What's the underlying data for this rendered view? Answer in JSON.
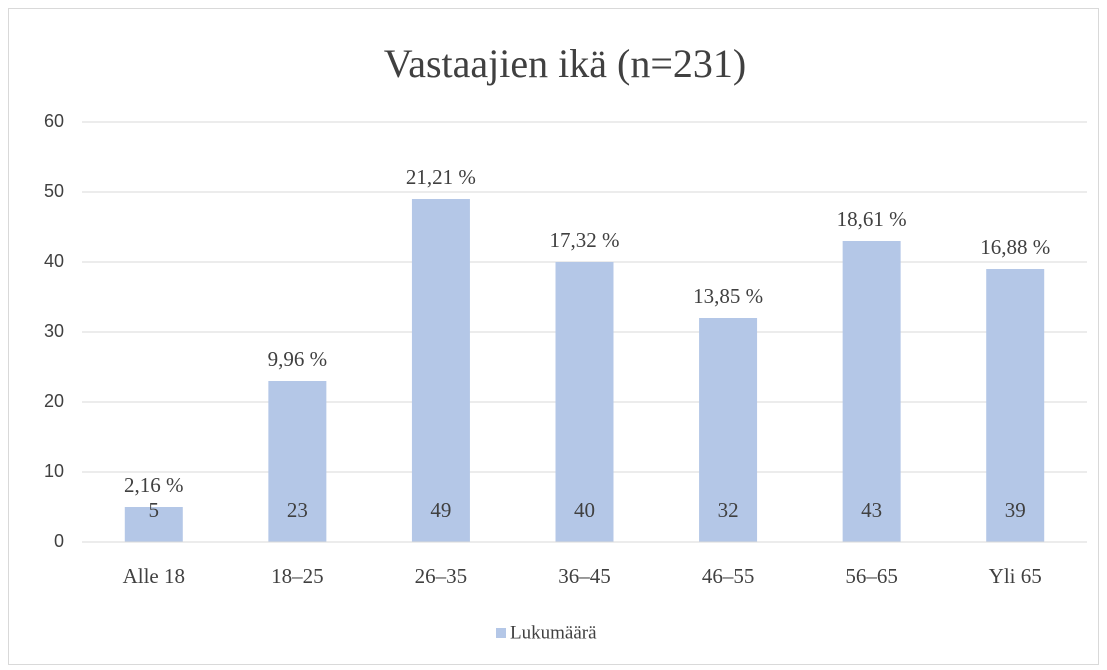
{
  "chart_data": {
    "type": "bar",
    "title": "Vastaajien ikä (n=231)",
    "categories": [
      "Alle 18",
      "18–25",
      "26–35",
      "36–45",
      "46–55",
      "56–65",
      "Yli 65"
    ],
    "series": [
      {
        "name": "Lukumäärä",
        "color": "#b4c7e7",
        "values": [
          5,
          23,
          49,
          40,
          32,
          43,
          39
        ],
        "percent_labels": [
          "2,16 %",
          "9,96 %",
          "21,21 %",
          "17,32 %",
          "13,85 %",
          "18,61 %",
          "16,88 %"
        ]
      }
    ],
    "ylim": [
      0,
      60
    ],
    "yticks": [
      0,
      10,
      20,
      30,
      40,
      50,
      60
    ],
    "grid": true,
    "legend": "bottom"
  }
}
